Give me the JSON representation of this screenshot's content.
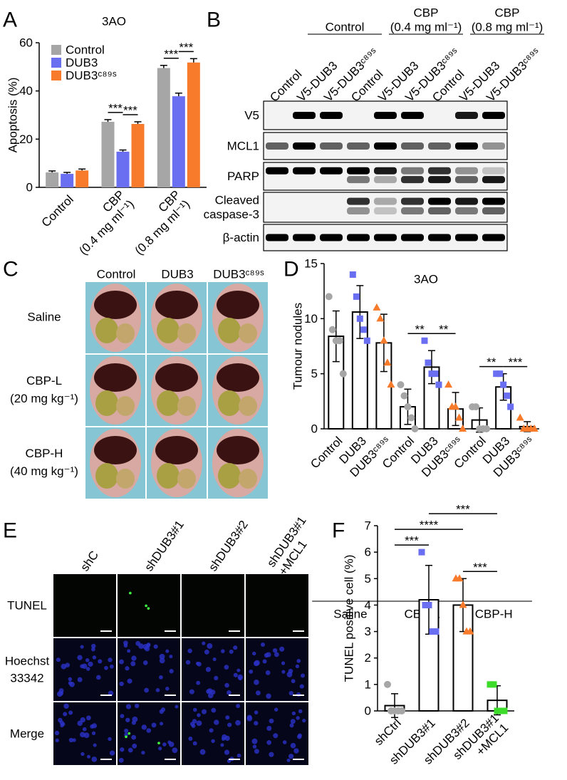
{
  "panel_labels": [
    "A",
    "B",
    "C",
    "D",
    "E",
    "F"
  ],
  "chart_data": [
    {
      "type": "bar",
      "title": "3AO",
      "y_label": "Apoptosis (%)",
      "error_bars": "up",
      "categories": [
        [
          "Control"
        ],
        [
          "CBP",
          "(0.4 mg ml⁻¹)"
        ],
        [
          "CBP",
          "(0.8 mg ml⁻¹)"
        ]
      ],
      "series": [
        {
          "name": "Control",
          "color": "#a6a6a6",
          "values": [
            6.2,
            27.2,
            49.5
          ],
          "errors": [
            0.6,
            0.9,
            1.1
          ]
        },
        {
          "name": "DUB3",
          "color": "#6a6ef0",
          "values": [
            5.6,
            14.8,
            37.8
          ],
          "errors": [
            0.6,
            0.7,
            1.3
          ]
        },
        {
          "name": "DUB3ᶜ⁸⁹ˢ",
          "color": "#f77b2b",
          "values": [
            7.0,
            26.3,
            51.8
          ],
          "errors": [
            0.6,
            0.9,
            1.6
          ]
        }
      ],
      "ylim": [
        0,
        60
      ],
      "yticks": [
        0,
        20,
        40,
        60
      ],
      "legend": "upper left",
      "comparisons": [
        {
          "category": 1,
          "series": [
            0,
            1
          ],
          "label": "***"
        },
        {
          "category": 1,
          "series": [
            1,
            2
          ],
          "label": "***"
        },
        {
          "category": 2,
          "series": [
            0,
            1
          ],
          "label": "***"
        },
        {
          "category": 2,
          "series": [
            1,
            2
          ],
          "label": "***"
        }
      ]
    },
    {
      "type": "bar",
      "title": "3AO",
      "y_label": "Tumour nodules",
      "error_bars": "both",
      "bar_color": "#ffffff",
      "edge_color": "#000000",
      "categories": [
        "Control",
        "DUB3",
        "DUB3ᶜ⁸⁹ˢ",
        "Control",
        "DUB3",
        "DUB3ᶜ⁸⁹ˢ",
        "Control",
        "DUB3",
        "DUB3ᶜ⁸⁹ˢ"
      ],
      "values": [
        8.4,
        10.6,
        7.8,
        2.0,
        5.6,
        1.8,
        0.8,
        3.8,
        0.2
      ],
      "errors": [
        2.3,
        2.4,
        2.6,
        1.6,
        1.5,
        1.5,
        1.1,
        1.2,
        0.45
      ],
      "points": [
        [
          12,
          9,
          8,
          8,
          5
        ],
        [
          14,
          12,
          10,
          9,
          8
        ],
        [
          11,
          10,
          8,
          6,
          4
        ],
        [
          4,
          3,
          2,
          1,
          0
        ],
        [
          8,
          6,
          5,
          5,
          4
        ],
        [
          4,
          2,
          2,
          1,
          0
        ],
        [
          2,
          2,
          0,
          0,
          0
        ],
        [
          5,
          5,
          4,
          3,
          2
        ],
        [
          1,
          0,
          0,
          0,
          0
        ]
      ],
      "point_colors": [
        "#a6a6a6",
        "#6a6ef0",
        "#f77b2b",
        "#a6a6a6",
        "#6a6ef0",
        "#f77b2b",
        "#a6a6a6",
        "#6a6ef0",
        "#f77b2b"
      ],
      "point_markers": [
        "circle",
        "square",
        "triangle",
        "circle",
        "square",
        "triangle",
        "circle",
        "square",
        "triangle"
      ],
      "groups": [
        {
          "label": "Saline",
          "categories": [
            0,
            2
          ]
        },
        {
          "label": "CBP-L",
          "categories": [
            3,
            5
          ]
        },
        {
          "label": "CBP-H",
          "categories": [
            6,
            8
          ]
        }
      ],
      "ylim": [
        0,
        15
      ],
      "yticks": [
        0,
        5,
        10,
        15
      ],
      "comparisons": [
        {
          "categories": [
            3,
            4
          ],
          "label": "**"
        },
        {
          "categories": [
            4,
            5
          ],
          "label": "**"
        },
        {
          "categories": [
            6,
            7
          ],
          "label": "**"
        },
        {
          "categories": [
            7,
            8
          ],
          "label": "***"
        }
      ]
    },
    {
      "type": "bar",
      "y_label": "TUNEL positive cell  (%)",
      "error_bars": "both",
      "bar_color": "#ffffff",
      "edge_color": "#000000",
      "categories": [
        "shCtrl",
        "shDUB3#1",
        "shDUB3#2",
        [
          "shDUB3#1",
          "+MCL1"
        ]
      ],
      "values": [
        0.2,
        4.2,
        4.0,
        0.4
      ],
      "errors": [
        0.45,
        1.3,
        1.0,
        0.55
      ],
      "points": [
        [
          1,
          0,
          0,
          0,
          0
        ],
        [
          6,
          4,
          4,
          3,
          3
        ],
        [
          5,
          5,
          4,
          3,
          3
        ],
        [
          1,
          1,
          0,
          0,
          0
        ]
      ],
      "point_colors": [
        "#a6a6a6",
        "#6a6ef0",
        "#f77b2b",
        "#3ddc2a"
      ],
      "point_markers": [
        "circle",
        "square",
        "triangle",
        "square"
      ],
      "ylim": [
        0,
        7
      ],
      "yticks": [
        0,
        1,
        2,
        3,
        4,
        5,
        6,
        7
      ],
      "comparisons": [
        {
          "categories": [
            0,
            1
          ],
          "label": "***"
        },
        {
          "categories": [
            2,
            3
          ],
          "label": "***"
        },
        {
          "categories": [
            0,
            2
          ],
          "label": "****"
        },
        {
          "categories": [
            1,
            3
          ],
          "label": "***"
        }
      ]
    }
  ],
  "blot": {
    "groups": [
      [
        "Control"
      ],
      [
        "CBP",
        "(0.4 mg ml⁻¹)"
      ],
      [
        "CBP",
        "(0.8 mg ml⁻¹)"
      ]
    ],
    "lanes": [
      "Control",
      "V5-DUB3",
      "V5-DUB3ᶜ⁸⁹ˢ",
      "Control",
      "V5-DUB3",
      "V5-DUB3ᶜ⁸⁹ˢ",
      "Control",
      "V5-DUB3",
      "V5-DUB3ᶜ⁸⁹ˢ"
    ],
    "rows": [
      [
        "V5"
      ],
      [
        "MCL1"
      ],
      [
        "PARP"
      ],
      [
        "Cleaved",
        "caspase-3"
      ],
      [
        "β-actin"
      ]
    ]
  },
  "photos": {
    "columns": [
      "Control",
      "DUB3",
      "DUB3ᶜ⁸⁹ˢ"
    ],
    "rows": [
      [
        "Saline"
      ],
      [
        "CBP-L",
        "(20 mg kg⁻¹)"
      ],
      [
        "CBP-H",
        "(40 mg kg⁻¹)"
      ]
    ]
  },
  "microscopy": {
    "columns": [
      [
        "shC"
      ],
      [
        "shDUB3#1"
      ],
      [
        "shDUB3#2"
      ],
      [
        "shDUB3#1",
        "+MCL1"
      ]
    ],
    "rows": [
      [
        "TUNEL"
      ],
      [
        "Hoechst",
        "33342"
      ],
      [
        "Merge"
      ]
    ]
  }
}
